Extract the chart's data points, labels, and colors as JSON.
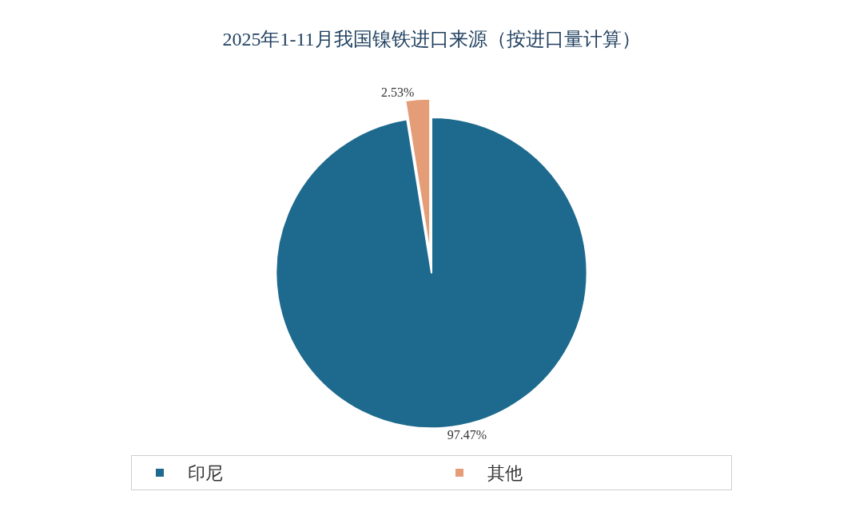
{
  "chart_data": {
    "type": "pie",
    "title": "2025年1-11月我国镍铁进口来源（按进口量计算）",
    "categories": [
      "印尼",
      "其他"
    ],
    "values": [
      97.47,
      2.53
    ],
    "colors": [
      "#1d6a8e",
      "#e59d78"
    ],
    "value_labels": [
      "97.47%",
      "2.53%"
    ],
    "legend": "bottom"
  }
}
